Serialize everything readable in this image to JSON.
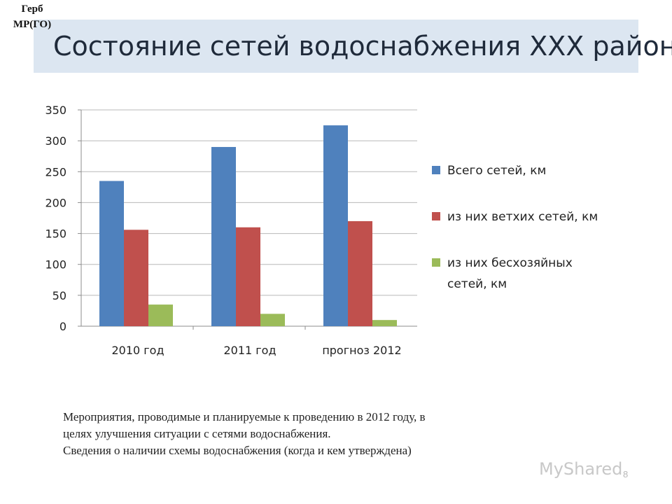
{
  "header": {
    "title": "Состояние сетей водоснабжения XXX района",
    "emblem_line1": "Герб",
    "emblem_line2": "МР(ГО)"
  },
  "chart_data": {
    "type": "bar",
    "categories": [
      "2010 год",
      "2011 год",
      "прогноз 2012"
    ],
    "series": [
      {
        "name": "Всего сетей, км",
        "values": [
          235,
          290,
          325
        ],
        "color": "#4f81bd"
      },
      {
        "name": "из них ветхих сетей, км",
        "values": [
          156,
          160,
          170
        ],
        "color": "#c0504d"
      },
      {
        "name": "из них бесхозяйных сетей, км",
        "values": [
          35,
          20,
          10
        ],
        "color": "#9bbb59"
      }
    ],
    "ylim": [
      0,
      350
    ],
    "yticks": [
      "0",
      "50",
      "100",
      "150",
      "200",
      "250",
      "300",
      "350"
    ],
    "grid": true,
    "legend_position": "right"
  },
  "caption": {
    "line1": "Мероприятия, проводимые и планируемые к проведению в 2012 году, в",
    "line2": "целях  улучшения ситуации с сетями водоснабжения.",
    "line3": "Сведения о наличии схемы водоснабжения (когда и кем утверждена)"
  },
  "footer": {
    "page_number": "8",
    "watermark": "MyShared"
  }
}
